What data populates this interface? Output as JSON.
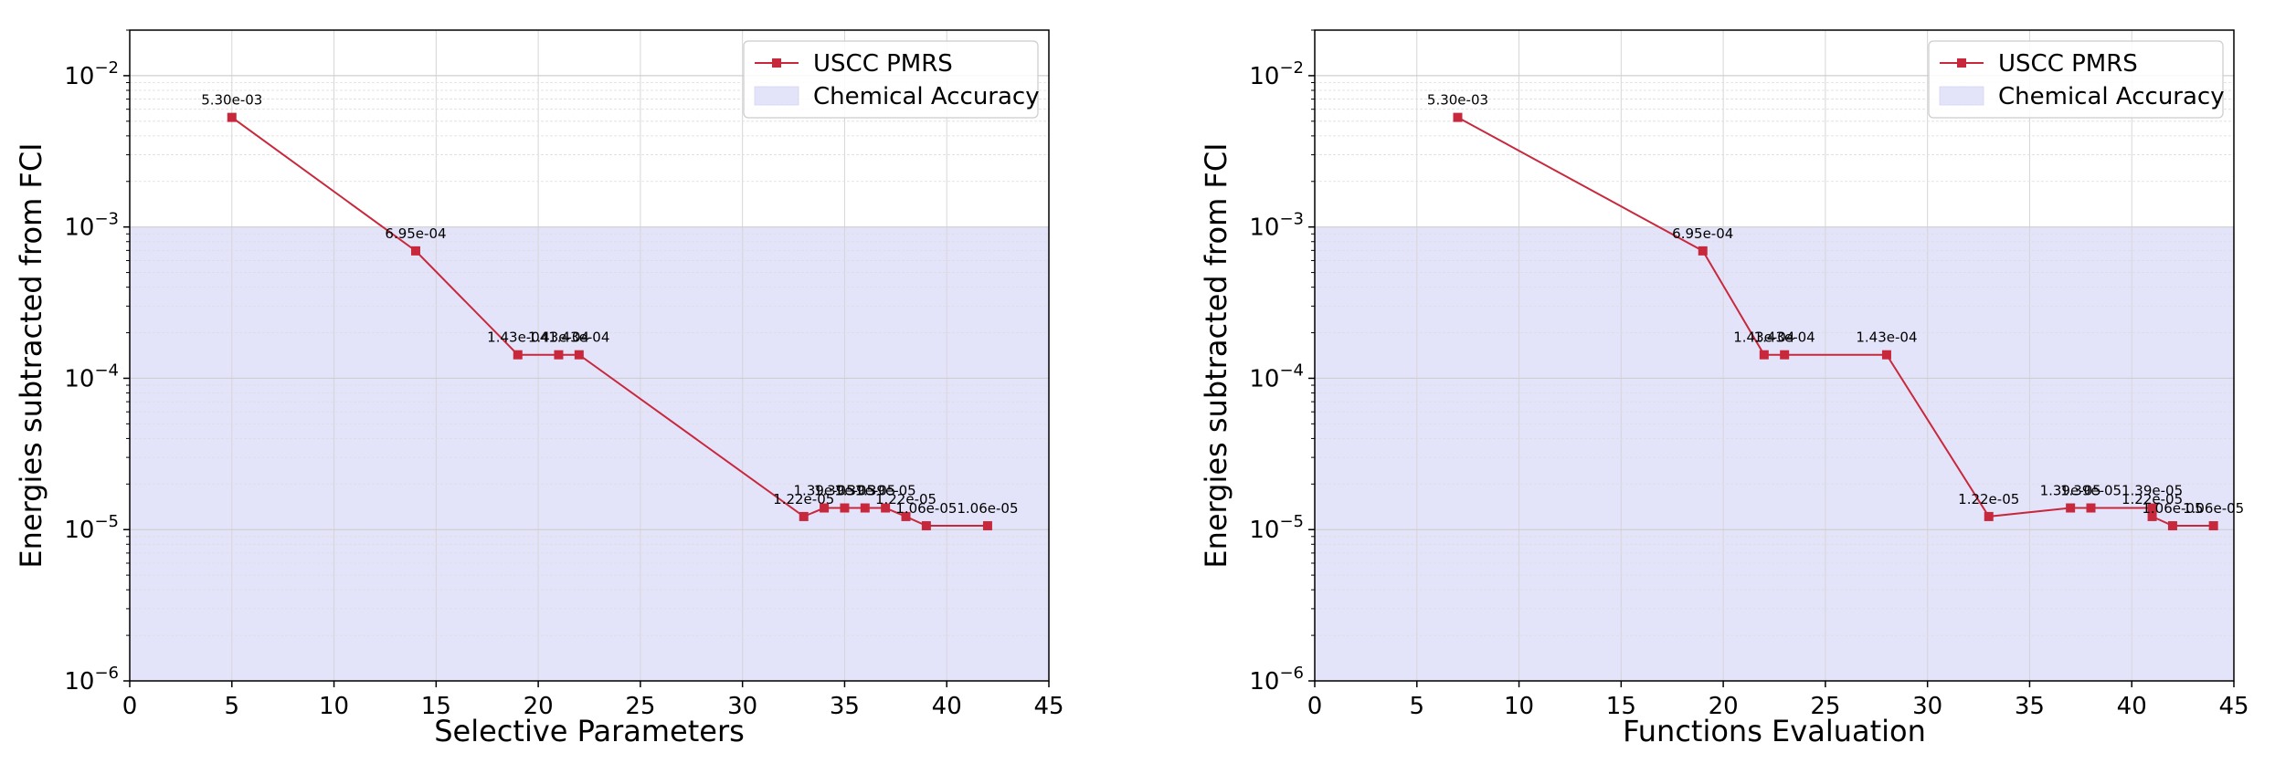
{
  "chart_data": [
    {
      "type": "line",
      "xlabel": "Selective Parameters",
      "ylabel": "Energies subtracted from FCI",
      "xlim": [
        0,
        45
      ],
      "ylim": [
        1e-06,
        0.02
      ],
      "yscale": "log",
      "grid": true,
      "legend_position": "top-right",
      "legend": [
        "USCC PMRS",
        "Chemical Accuracy"
      ],
      "chemical_accuracy": 0.001,
      "series": [
        {
          "name": "USCC PMRS",
          "x": [
            5,
            14,
            19,
            21,
            22,
            33,
            34,
            35,
            36,
            37,
            38,
            39,
            42
          ],
          "y": [
            0.0053,
            0.000695,
            0.000143,
            0.000143,
            0.000143,
            1.22e-05,
            1.39e-05,
            1.39e-05,
            1.39e-05,
            1.39e-05,
            1.22e-05,
            1.06e-05,
            1.06e-05
          ],
          "labels": [
            "5.30e-03",
            "6.95e-04",
            "1.43e-04",
            "1.43e-04",
            "1.43e-04",
            "1.22e-05",
            "1.39e-05",
            "1.39e-05",
            "1.39e-05",
            "1.39e-05",
            "1.22e-05",
            "1.06e-05",
            "1.06e-05"
          ]
        }
      ]
    },
    {
      "type": "line",
      "xlabel": "Functions Evaluation",
      "ylabel": "Energies subtracted from FCI",
      "xlim": [
        0,
        45
      ],
      "ylim": [
        1e-06,
        0.02
      ],
      "yscale": "log",
      "grid": true,
      "legend_position": "top-right",
      "legend": [
        "USCC PMRS",
        "Chemical Accuracy"
      ],
      "chemical_accuracy": 0.001,
      "series": [
        {
          "name": "USCC PMRS",
          "x": [
            7,
            19,
            22,
            23,
            28,
            33,
            37,
            38,
            41,
            41,
            42,
            44
          ],
          "y": [
            0.0053,
            0.000695,
            0.000143,
            0.000143,
            0.000143,
            1.22e-05,
            1.39e-05,
            1.39e-05,
            1.39e-05,
            1.22e-05,
            1.06e-05,
            1.06e-05
          ],
          "labels": [
            "5.30e-03",
            "6.95e-04",
            "1.43e-04",
            "1.43e-04",
            "1.43e-04",
            "1.22e-05",
            "1.39e-05",
            "1.39e-05",
            "1.39e-05",
            "1.22e-05",
            "1.06e-05",
            "1.06e-05"
          ]
        }
      ]
    }
  ],
  "style": {
    "line_color": "#c8283c",
    "fill_color": "#e3e3fa",
    "grid_color": "#d6d6d6"
  }
}
